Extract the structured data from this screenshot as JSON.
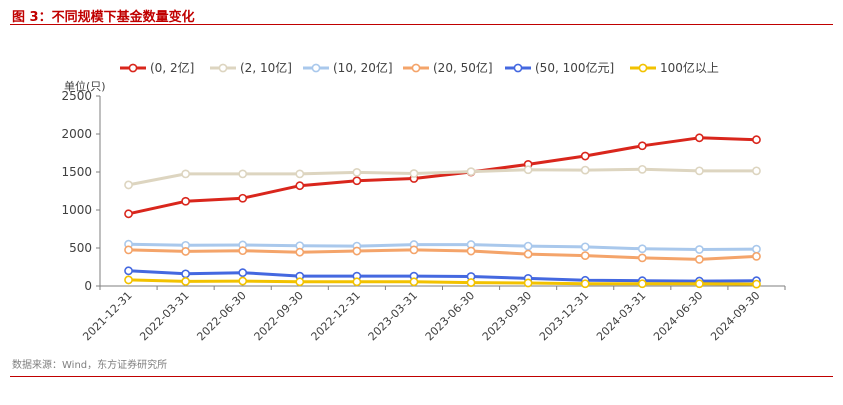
{
  "figure": {
    "title": "图 3：不同规模下基金数量变化",
    "source": "数据来源：Wind，东方证券研究所"
  },
  "chart_data": {
    "type": "line",
    "ylabel": "单位(只)",
    "ylim": [
      0,
      2500
    ],
    "yticks": [
      0,
      500,
      1000,
      1500,
      2000,
      2500
    ],
    "grid": false,
    "legend_position": "top",
    "categories": [
      "2021-12-31",
      "2022-03-31",
      "2022-06-30",
      "2022-09-30",
      "2022-12-31",
      "2023-03-31",
      "2023-06-30",
      "2023-09-30",
      "2023-12-31",
      "2024-03-31",
      "2024-06-30",
      "2024-09-30"
    ],
    "series": [
      {
        "name": "(0, 2亿]",
        "color": "#d9261c",
        "values": [
          950,
          1115,
          1155,
          1320,
          1385,
          1415,
          1500,
          1600,
          1710,
          1845,
          1950,
          1925
        ]
      },
      {
        "name": "(2, 10亿]",
        "color": "#ddd5c0",
        "values": [
          1330,
          1475,
          1475,
          1475,
          1495,
          1480,
          1505,
          1530,
          1525,
          1535,
          1515,
          1515
        ]
      },
      {
        "name": "(10, 20亿]",
        "color": "#a9c8ec",
        "values": [
          550,
          535,
          540,
          530,
          525,
          545,
          545,
          525,
          515,
          490,
          480,
          485
        ]
      },
      {
        "name": "(20, 50亿]",
        "color": "#f4a46a",
        "values": [
          475,
          455,
          465,
          445,
          460,
          475,
          460,
          420,
          400,
          370,
          350,
          390
        ]
      },
      {
        "name": "(50, 100亿元]",
        "color": "#4468e0",
        "values": [
          200,
          160,
          175,
          130,
          130,
          130,
          125,
          100,
          75,
          70,
          65,
          70
        ]
      },
      {
        "name": "100亿以上",
        "color": "#f2c200",
        "values": [
          80,
          60,
          65,
          55,
          55,
          55,
          45,
          40,
          30,
          30,
          30,
          25
        ]
      }
    ]
  }
}
